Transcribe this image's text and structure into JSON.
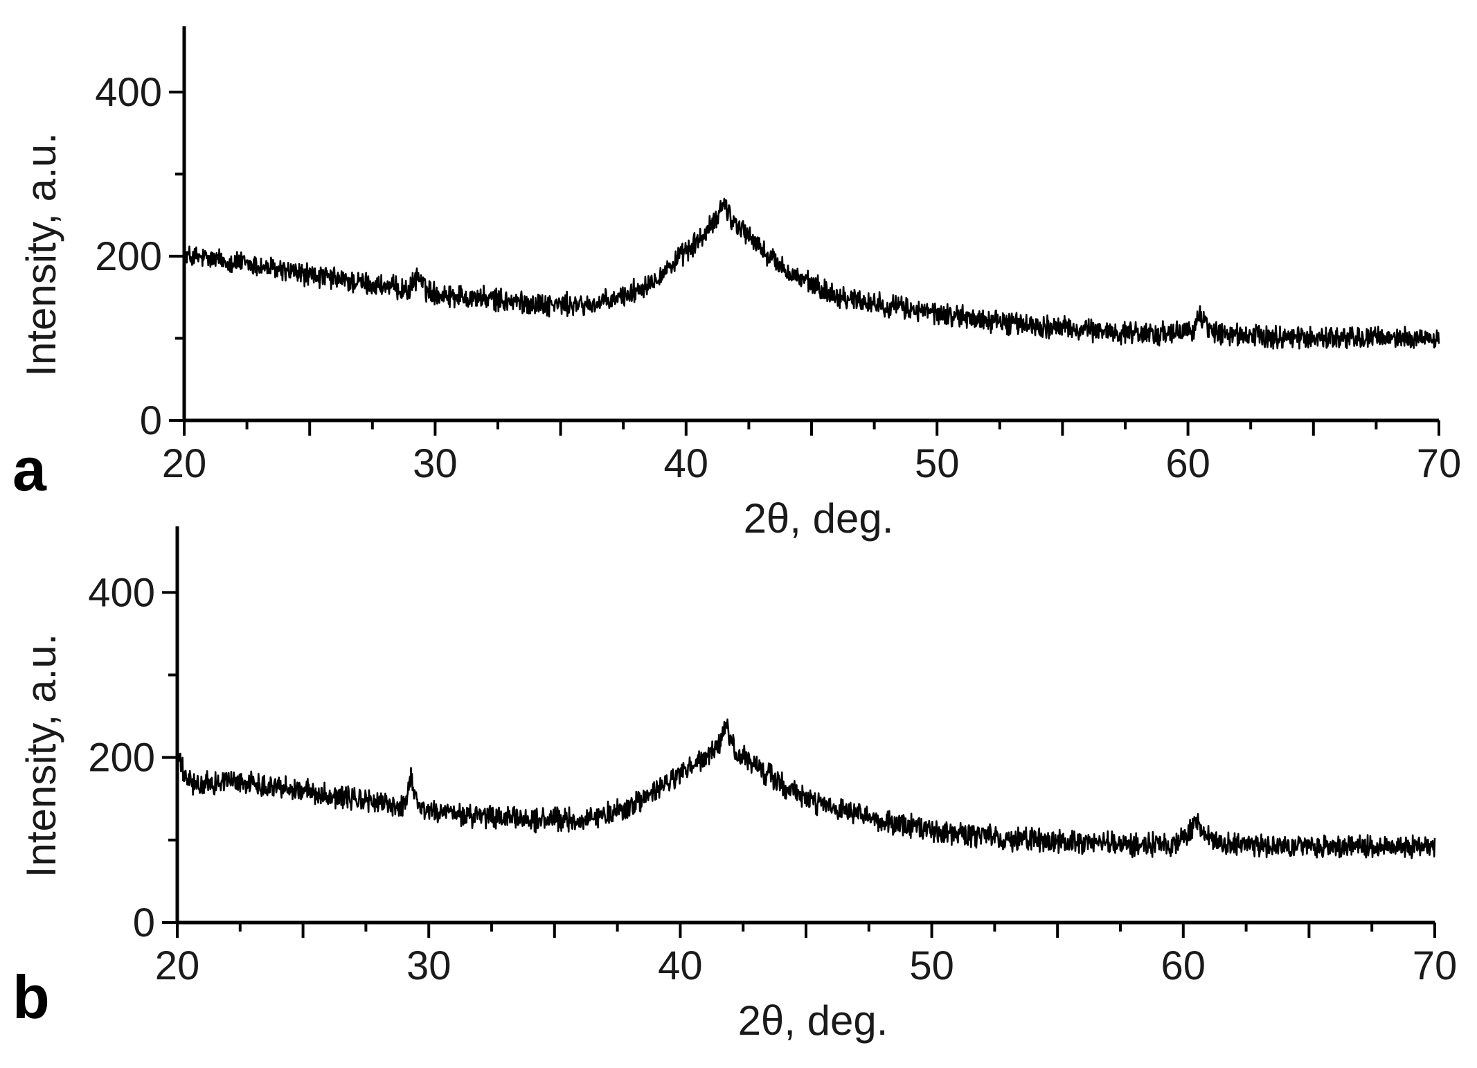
{
  "chart_data": [
    {
      "type": "line",
      "panel_label": "a",
      "xlabel": "2θ, deg.",
      "ylabel": "Intensity, a.u.",
      "xlim": [
        20,
        70
      ],
      "ylim": [
        0,
        480
      ],
      "x_ticks": [
        20,
        30,
        40,
        50,
        60,
        70
      ],
      "y_ticks": [
        0,
        200,
        400
      ],
      "x_minor_step": 2.5,
      "y_minor_step": 100,
      "grid": false,
      "line_color": "#000000",
      "noise_amplitude": 11,
      "series": [
        {
          "x": [
            20,
            22,
            24,
            26,
            28,
            29,
            29.3,
            29.6,
            30,
            32,
            34,
            36,
            37,
            38,
            39,
            40,
            40.8,
            41.2,
            41.5,
            41.8,
            42.3,
            43,
            44,
            45,
            46,
            48,
            50,
            52,
            54,
            56,
            58,
            59.5,
            60.2,
            60.5,
            60.8,
            61.5,
            63,
            65,
            67,
            70
          ],
          "values": [
            200,
            193,
            182,
            172,
            163,
            158,
            178,
            160,
            155,
            148,
            142,
            140,
            145,
            158,
            178,
            205,
            228,
            245,
            268,
            245,
            232,
            208,
            182,
            165,
            152,
            140,
            130,
            122,
            115,
            110,
            106,
            105,
            112,
            128,
            112,
            104,
            102,
            101,
            100,
            100
          ]
        }
      ]
    },
    {
      "type": "line",
      "panel_label": "b",
      "xlabel": "2θ, deg.",
      "ylabel": "Intensity, a.u.",
      "xlim": [
        20,
        70
      ],
      "ylim": [
        0,
        480
      ],
      "x_ticks": [
        20,
        30,
        40,
        50,
        60,
        70
      ],
      "y_ticks": [
        0,
        200,
        400
      ],
      "x_minor_step": 2.5,
      "y_minor_step": 100,
      "grid": false,
      "line_color": "#000000",
      "noise_amplitude": 11,
      "series": [
        {
          "x": [
            20,
            20.3,
            20.8,
            22,
            24,
            26,
            28,
            29,
            29.3,
            29.6,
            30,
            32,
            34,
            36,
            37,
            38,
            39,
            40,
            41,
            41.5,
            41.8,
            42.2,
            43,
            44,
            45,
            46,
            48,
            50,
            52,
            54,
            56,
            58,
            59.5,
            60.2,
            60.5,
            60.8,
            61.5,
            63,
            65,
            67,
            70
          ],
          "values": [
            205,
            175,
            165,
            172,
            165,
            155,
            145,
            140,
            178,
            140,
            135,
            128,
            125,
            124,
            130,
            140,
            158,
            180,
            200,
            210,
            240,
            205,
            190,
            168,
            150,
            138,
            122,
            112,
            104,
            100,
            97,
            95,
            96,
            105,
            125,
            105,
            95,
            93,
            92,
            92,
            93
          ]
        }
      ]
    }
  ]
}
